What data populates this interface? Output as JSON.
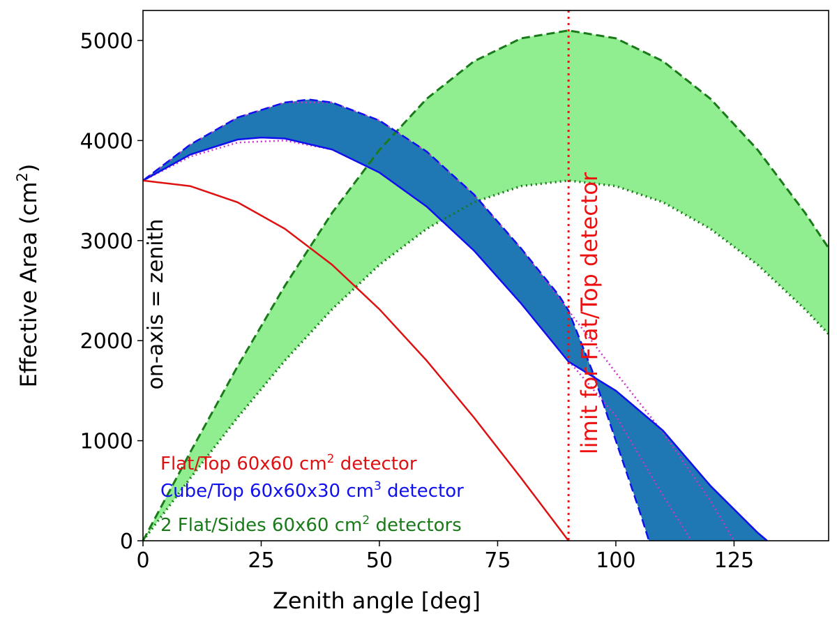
{
  "chart_data": {
    "type": "area",
    "xlabel": "Zenith angle [deg]",
    "ylabel_main": "Effective Area (cm",
    "ylabel_sup": "2",
    "ylabel_end": ")",
    "xlim": [
      0,
      145
    ],
    "ylim": [
      0,
      5300
    ],
    "xticks": [
      0,
      25,
      50,
      75,
      100,
      125
    ],
    "yticks": [
      0,
      1000,
      2000,
      3000,
      4000,
      5000
    ],
    "grid": false,
    "colors": {
      "flat": "#dd1111",
      "cube_line": "#1010ee",
      "cube_fill": "#1f77b4",
      "sides_line": "#1a7a1a",
      "sides_fill": "#90ee90",
      "magenta": "#cc33cc",
      "limit": "#ee1111"
    },
    "series": [
      {
        "name": "Flat/Top 60x60 cm2 detector",
        "x": [
          0,
          10,
          20,
          30,
          40,
          50,
          60,
          70,
          80,
          90
        ],
        "y": [
          3600,
          3545,
          3383,
          3118,
          2758,
          2314,
          1800,
          1231,
          625,
          0
        ]
      },
      {
        "x": [
          0,
          10,
          20,
          25,
          30,
          40,
          50,
          60,
          70,
          80,
          90,
          100,
          110,
          120,
          130,
          132
        ],
        "y": [
          3600,
          3860,
          4010,
          4030,
          4020,
          3910,
          3680,
          3340,
          2900,
          2370,
          1790,
          1500,
          1100,
          550,
          80,
          0
        ]
      },
      {
        "x": [
          0,
          10,
          20,
          30,
          35,
          40,
          50,
          60,
          70,
          80,
          88,
          90,
          95,
          100,
          105,
          107
        ],
        "y": [
          3600,
          3960,
          4230,
          4380,
          4410,
          4380,
          4200,
          3890,
          3460,
          2920,
          2450,
          2300,
          1700,
          1000,
          300,
          0
        ]
      },
      {
        "x": [
          0,
          10,
          20,
          30,
          40,
          50,
          60,
          70,
          80,
          90,
          100,
          110,
          116
        ],
        "y": [
          3600,
          3840,
          3980,
          4000,
          3910,
          3680,
          3340,
          2900,
          2370,
          1800,
          1250,
          450,
          0
        ]
      },
      {
        "x": [
          0,
          10,
          20,
          30,
          40,
          50,
          60,
          70,
          80,
          90,
          100,
          110,
          120,
          125
        ],
        "y": [
          3600,
          3960,
          4230,
          4380,
          4380,
          4200,
          3890,
          3460,
          2920,
          2300,
          1680,
          1080,
          400,
          0
        ]
      },
      {
        "name": "2 Flat/Sides 60x60 cm2 detectors",
        "x": [
          0,
          10,
          20,
          30,
          40,
          50,
          60,
          70,
          80,
          90,
          100,
          110,
          120,
          130,
          140,
          145
        ],
        "y": [
          0,
          885,
          1743,
          2548,
          3278,
          3907,
          4418,
          4792,
          5022,
          5100,
          5022,
          4792,
          4418,
          3907,
          3278,
          2925
        ]
      },
      {
        "x": [
          0,
          10,
          20,
          30,
          40,
          50,
          60,
          70,
          80,
          90,
          100,
          110,
          120,
          130,
          140,
          145
        ],
        "y": [
          0,
          625,
          1231,
          1800,
          2314,
          2758,
          3118,
          3383,
          3545,
          3600,
          3545,
          3383,
          3118,
          2758,
          2314,
          2065
        ]
      }
    ],
    "vline": {
      "x": 90,
      "label": "limit for Flat/Top detector"
    },
    "annotation": "on-axis = zenith",
    "legend": [
      {
        "text": "Flat/Top 60x60 cm",
        "sup": "2",
        "tail": " detector",
        "color": "#dd1111"
      },
      {
        "text": "Cube/Top 60x60x30 cm",
        "sup": "3",
        "tail": " detector",
        "color": "#1010ee"
      },
      {
        "text": "2 Flat/Sides 60x60 cm",
        "sup": "2",
        "tail": " detectors",
        "color": "#1a7a1a"
      }
    ],
    "legend_position": "lower-left"
  }
}
